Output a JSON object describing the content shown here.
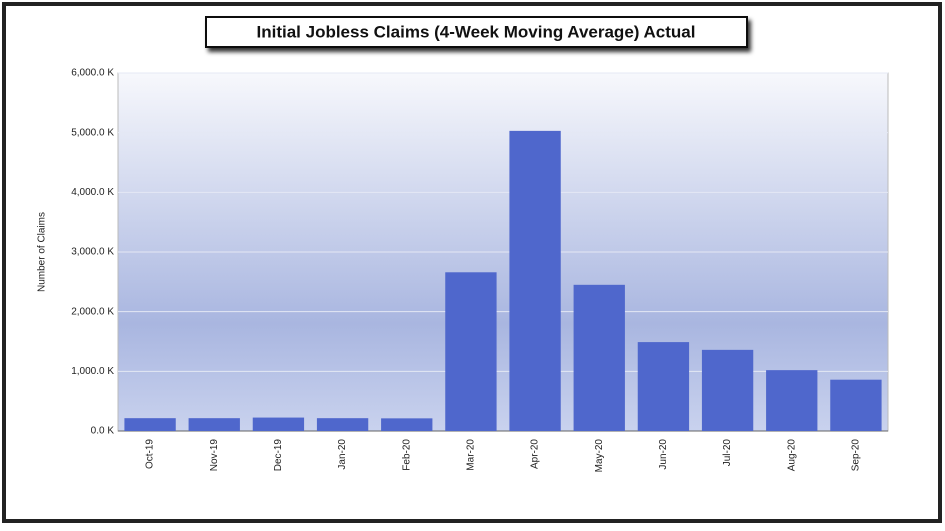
{
  "chart_data": {
    "type": "bar",
    "title": "Initial Jobless Claims (4-Week Moving Average) Actual",
    "y_label": "Number of Claims",
    "categories": [
      "Oct-19",
      "Nov-19",
      "Dec-19",
      "Jan-20",
      "Feb-20",
      "Mar-20",
      "Apr-20",
      "May-20",
      "Jun-20",
      "Jul-20",
      "Aug-20",
      "Sep-20"
    ],
    "values": [
      215,
      215,
      225,
      215,
      212,
      2660,
      5030,
      2450,
      1490,
      1360,
      1020,
      860
    ],
    "color": "#4f67cc",
    "ylim": [
      0,
      6000
    ],
    "yticks": [
      {
        "value": 0,
        "label": "0.0 K"
      },
      {
        "value": 1000,
        "label": "1,000.0 K"
      },
      {
        "value": 2000,
        "label": "2,000.0 K"
      },
      {
        "value": 3000,
        "label": "3,000.0 K"
      },
      {
        "value": 4000,
        "label": "4,000.0 K"
      },
      {
        "value": 5000,
        "label": "5,000.0 K"
      },
      {
        "value": 6000,
        "label": "6,000.0 K"
      }
    ],
    "grid": true
  }
}
